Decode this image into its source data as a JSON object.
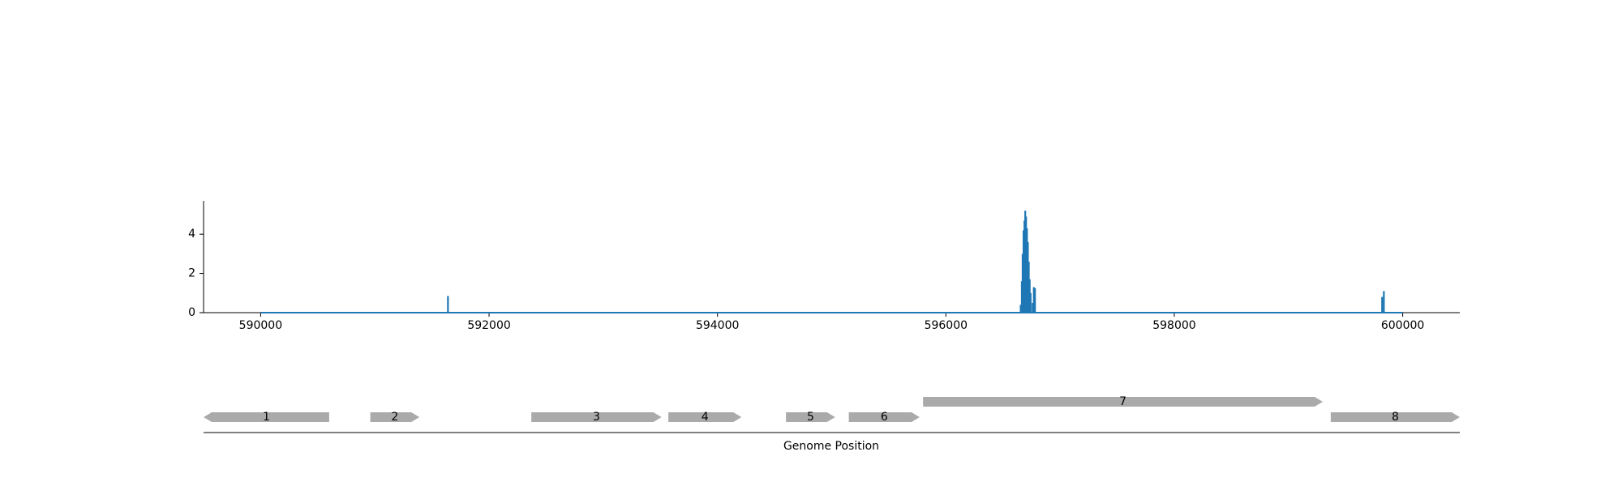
{
  "chart_data": [
    {
      "type": "area",
      "title": "",
      "xlabel": "",
      "ylabel": "",
      "xlim": [
        589500,
        600500
      ],
      "ylim": [
        0,
        5.7
      ],
      "x_ticks": [
        590000,
        592000,
        594000,
        596000,
        598000,
        600000
      ],
      "x_tick_labels": [
        "590000",
        "592000",
        "594000",
        "596000",
        "598000",
        "600000"
      ],
      "y_ticks": [
        0,
        2,
        4
      ],
      "y_tick_labels": [
        "0",
        "2",
        "4"
      ],
      "grid": false,
      "series_color": "#1f77b4",
      "baseline": {
        "start": 590000,
        "end": 600000
      },
      "peaks": [
        {
          "x": 591640,
          "y": 0.85
        },
        {
          "x": 596655,
          "y": 0.4
        },
        {
          "x": 596665,
          "y": 1.6
        },
        {
          "x": 596672,
          "y": 3.0
        },
        {
          "x": 596680,
          "y": 4.2
        },
        {
          "x": 596688,
          "y": 4.7
        },
        {
          "x": 596695,
          "y": 5.2
        },
        {
          "x": 596702,
          "y": 4.9
        },
        {
          "x": 596710,
          "y": 4.3
        },
        {
          "x": 596718,
          "y": 3.6
        },
        {
          "x": 596726,
          "y": 2.6
        },
        {
          "x": 596734,
          "y": 1.7
        },
        {
          "x": 596742,
          "y": 1.0
        },
        {
          "x": 596760,
          "y": 0.5
        },
        {
          "x": 596770,
          "y": 1.3
        },
        {
          "x": 596780,
          "y": 1.25
        },
        {
          "x": 599820,
          "y": 0.8
        },
        {
          "x": 599835,
          "y": 1.1
        }
      ]
    },
    {
      "type": "gene_track",
      "xlabel": "Genome Position",
      "xlim": [
        589500,
        600500
      ],
      "feature_color": "#aaaaaa",
      "genes": [
        {
          "label": "1",
          "start": 589500,
          "end": 590600,
          "strand": "-",
          "row": 0
        },
        {
          "label": "2",
          "start": 590960,
          "end": 591390,
          "strand": "+",
          "row": 0
        },
        {
          "label": "3",
          "start": 592370,
          "end": 593510,
          "strand": "+",
          "row": 0
        },
        {
          "label": "4",
          "start": 593570,
          "end": 594210,
          "strand": "+",
          "row": 0
        },
        {
          "label": "5",
          "start": 594600,
          "end": 595030,
          "strand": "+",
          "row": 0
        },
        {
          "label": "6",
          "start": 595150,
          "end": 595770,
          "strand": "+",
          "row": 0
        },
        {
          "label": "7",
          "start": 595800,
          "end": 599300,
          "strand": "+",
          "row": 1
        },
        {
          "label": "8",
          "start": 599370,
          "end": 600500,
          "strand": "+",
          "row": 0
        }
      ]
    }
  ]
}
